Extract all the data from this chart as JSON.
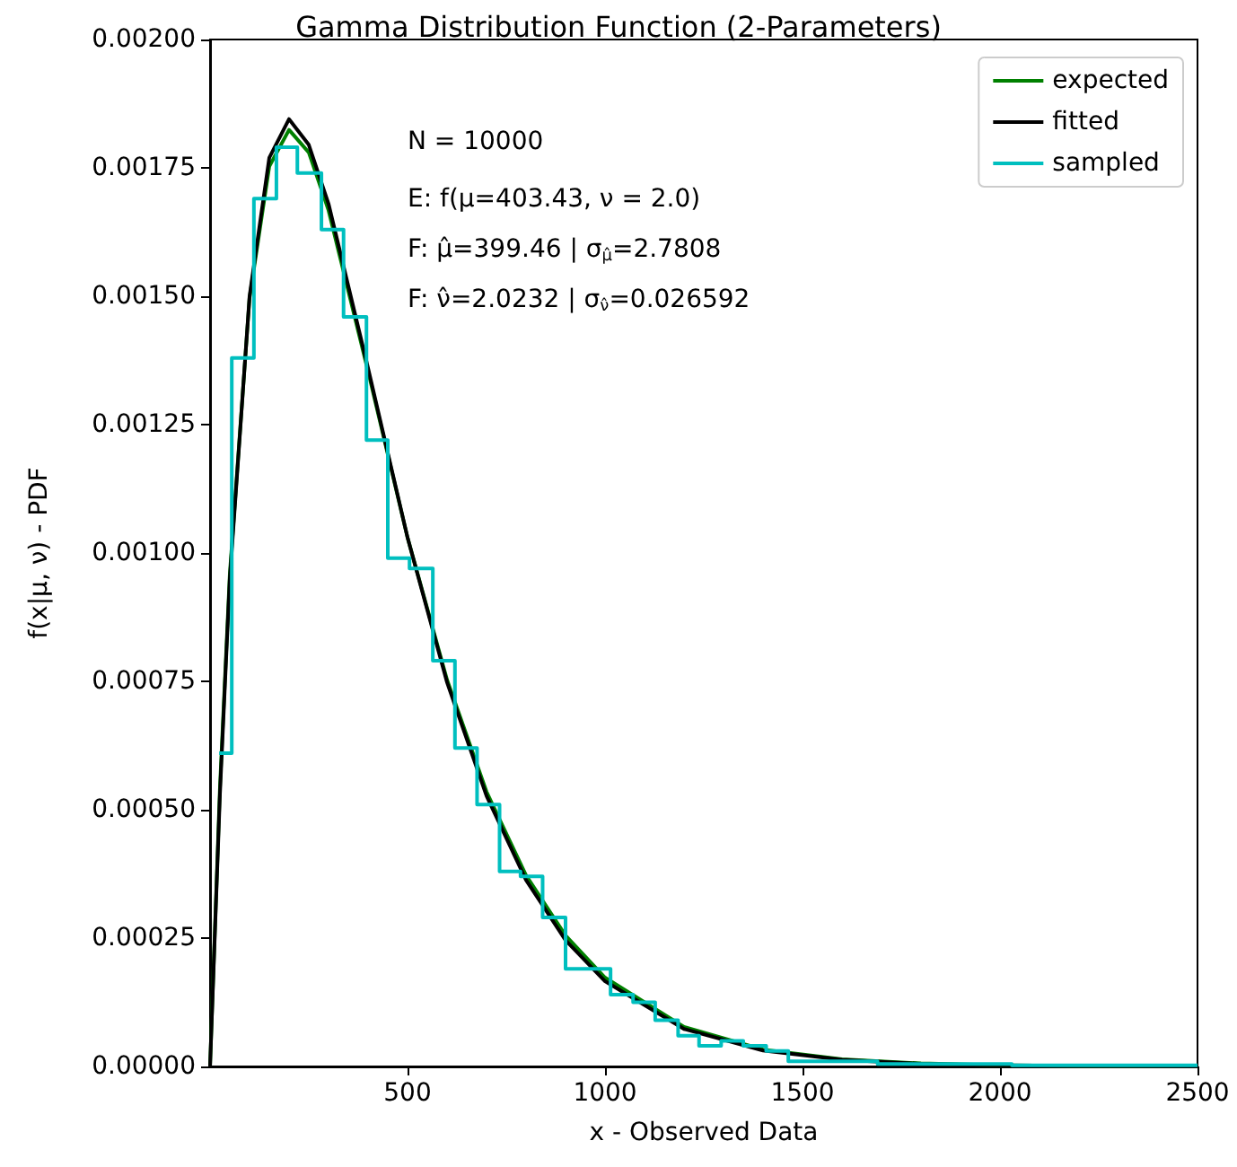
{
  "chart_data": {
    "type": "line",
    "title": "Gamma Distribution Function (2-Parameters)",
    "xlabel": "x - Observed Data",
    "ylabel": "f(x|μ, ν) - PDF",
    "annotations": [
      "N = 10000",
      "E: f(μ=403.43, ν = 2.0)",
      "F: μ̂=399.46 | σ$_{μ̂}$=2.7808",
      "F: ν̂=2.0232 | σ$_{ν̂}$=0.026592"
    ],
    "xlim": [
      0,
      2500
    ],
    "xticks": [
      500,
      1000,
      1500,
      2000,
      2500
    ],
    "ylim": [
      0,
      0.002
    ],
    "yticks": [
      {
        "value": 0,
        "label": "0.00000"
      },
      {
        "value": 0.00025,
        "label": "0.00025"
      },
      {
        "value": 0.0005,
        "label": "0.00050"
      },
      {
        "value": 0.00075,
        "label": "0.00075"
      },
      {
        "value": 0.001,
        "label": "0.00100"
      },
      {
        "value": 0.00125,
        "label": "0.00125"
      },
      {
        "value": 0.0015,
        "label": "0.00150"
      },
      {
        "value": 0.00175,
        "label": "0.00175"
      },
      {
        "value": 0.002,
        "label": "0.00200"
      }
    ],
    "legend": "top right",
    "series": [
      {
        "name": "expected",
        "color": "#008000",
        "x": [
          0,
          25,
          50,
          100,
          150,
          200,
          250,
          300,
          400,
          500,
          600,
          700,
          800,
          900,
          1000,
          1200,
          1400,
          1600,
          1800,
          2000,
          2500
        ],
        "values": [
          0,
          0.000543,
          0.000959,
          0.001497,
          0.001753,
          0.001824,
          0.00178,
          0.001667,
          0.001354,
          0.00103,
          0.000753,
          0.000535,
          0.000372,
          0.000255,
          0.000173,
          7.7e-05,
          3.3e-05,
          1.4e-05,
          6e-06,
          2e-06,
          0
        ]
      },
      {
        "name": "fitted",
        "color": "#000000",
        "x": [
          0,
          25,
          50,
          100,
          150,
          200,
          250,
          300,
          400,
          500,
          600,
          700,
          800,
          900,
          1000,
          1200,
          1400,
          1600,
          1800,
          2000,
          2500
        ],
        "values": [
          0,
          0.00053,
          0.00095,
          0.0015,
          0.00177,
          0.001845,
          0.001795,
          0.00168,
          0.00136,
          0.00103,
          0.000748,
          0.000527,
          0.000363,
          0.000246,
          0.000166,
          7.3e-05,
          3.1e-05,
          1.3e-05,
          5e-06,
          2e-06,
          0
        ]
      },
      {
        "name": "sampled",
        "type": "step",
        "color": "#00bfbf",
        "x": [
          23,
          55,
          111,
          168,
          221,
          282,
          338,
          396,
          450,
          505,
          564,
          620,
          676,
          733,
          786,
          842,
          900,
          957,
          1014,
          1071,
          1127,
          1185,
          1238,
          1294,
          1350,
          1408,
          1464,
          1520,
          1690,
          1860,
          2030,
          2200,
          2500
        ],
        "values": [
          0.00061,
          0.00138,
          0.00169,
          0.00179,
          0.00174,
          0.00163,
          0.00146,
          0.00122,
          0.00099,
          0.00097,
          0.00079,
          0.00062,
          0.00051,
          0.00038,
          0.00037,
          0.00029,
          0.00019,
          0.00019,
          0.00014,
          0.000125,
          9e-05,
          6e-05,
          4e-05,
          5e-05,
          4e-05,
          3e-05,
          1e-05,
          1e-05,
          5e-06,
          5e-06,
          2e-06,
          2e-06,
          2e-06
        ]
      }
    ]
  }
}
